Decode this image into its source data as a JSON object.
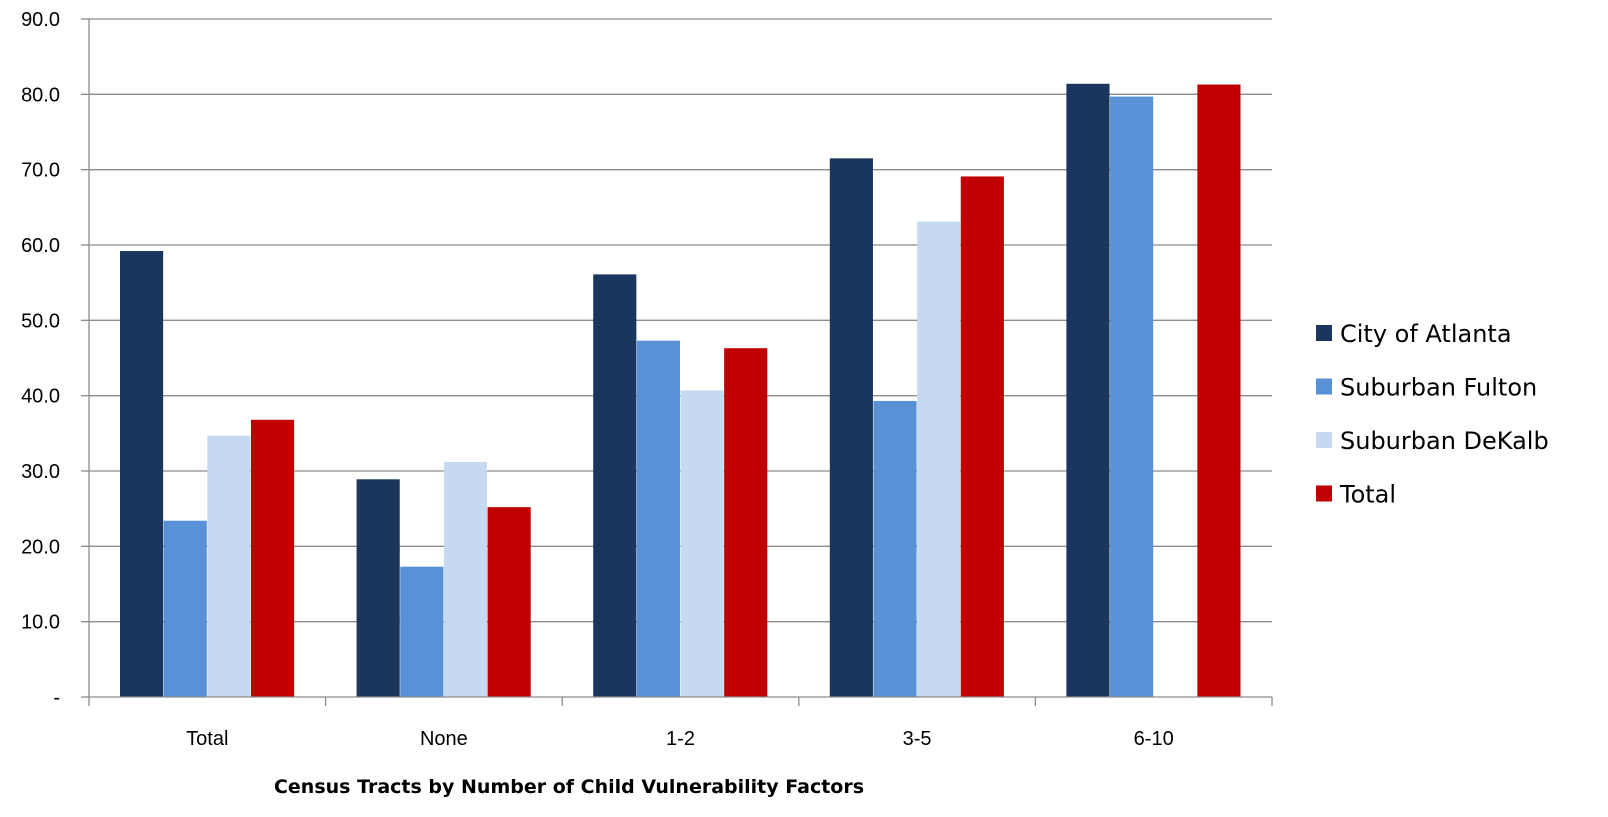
{
  "chart_data": {
    "type": "bar",
    "title": "",
    "xlabel": "Census Tracts by Number of Child Vulnerability Factors",
    "ylabel": "",
    "ylim": [
      0,
      90
    ],
    "y_ticks": [
      {
        "value": 0,
        "label": "-"
      },
      {
        "value": 10,
        "label": "10.0"
      },
      {
        "value": 20,
        "label": "20.0"
      },
      {
        "value": 30,
        "label": "30.0"
      },
      {
        "value": 40,
        "label": "40.0"
      },
      {
        "value": 50,
        "label": "50.0"
      },
      {
        "value": 60,
        "label": "60.0"
      },
      {
        "value": 70,
        "label": "70.0"
      },
      {
        "value": 80,
        "label": "80.0"
      },
      {
        "value": 90,
        "label": "90.0"
      }
    ],
    "categories": [
      "Total",
      "None",
      "1-2",
      "3-5",
      "6-10"
    ],
    "grid": true,
    "legend_position": "right",
    "series": [
      {
        "name": "City of Atlanta",
        "color": "#1a365d",
        "values": [
          59.2,
          28.9,
          56.1,
          71.5,
          81.4
        ]
      },
      {
        "name": "Suburban Fulton",
        "color": "#5891d6",
        "values": [
          23.4,
          17.3,
          47.3,
          39.3,
          79.7
        ]
      },
      {
        "name": "Suburban DeKalb",
        "color": "#c6d9f0",
        "values": [
          34.7,
          31.2,
          40.7,
          63.1,
          0
        ]
      },
      {
        "name": "Total",
        "color": "#c00000",
        "values": [
          36.8,
          25.2,
          46.3,
          69.1,
          81.3
        ]
      }
    ]
  }
}
